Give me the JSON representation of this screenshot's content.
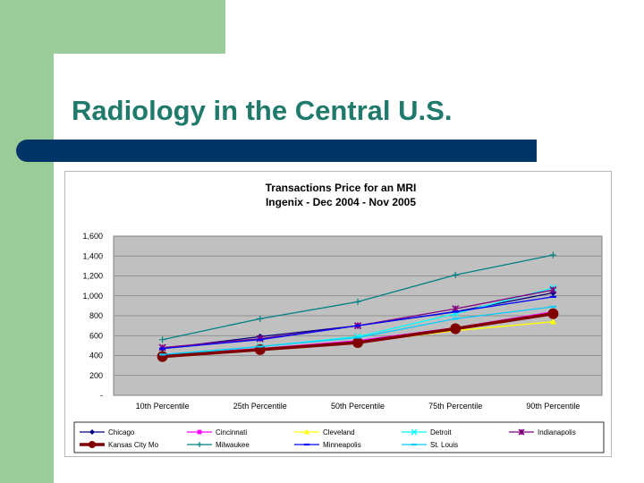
{
  "slide": {
    "title": "Radiology in the Central U.S."
  },
  "colors": {
    "green_accent": "#99cc99",
    "title_bar": "#003366",
    "title_text": "#1f7a6c",
    "plot_area": "#c0c0c0"
  },
  "chart_data": {
    "type": "line",
    "title_line1": "Transactions Price for an MRI",
    "title_line2": "Ingenix - Dec 2004 - Nov 2005",
    "categories": [
      "10th Percentile",
      "25th Percentile",
      "50th Percentile",
      "75th Percentile",
      "90th Percentile"
    ],
    "ylim": [
      0,
      1600
    ],
    "y_ticks": [
      {
        "value": 0,
        "label": "-"
      },
      {
        "value": 200,
        "label": "200"
      },
      {
        "value": 400,
        "label": "400"
      },
      {
        "value": 600,
        "label": "600"
      },
      {
        "value": 800,
        "label": "800"
      },
      {
        "value": 1000,
        "label": "1,000"
      },
      {
        "value": 1200,
        "label": "1,200"
      },
      {
        "value": 1400,
        "label": "1,400"
      },
      {
        "value": 1600,
        "label": "1,600"
      }
    ],
    "grid": "horizontal",
    "legend_position": "bottom",
    "series": [
      {
        "name": "Chicago",
        "color": "#000080",
        "marker": "diamond",
        "values": [
          470,
          590,
          700,
          840,
          1030
        ]
      },
      {
        "name": "Cincinnati",
        "color": "#ff00ff",
        "marker": "square",
        "values": [
          410,
          470,
          550,
          680,
          840
        ]
      },
      {
        "name": "Cleveland",
        "color": "#ffff00",
        "marker": "triangle",
        "values": [
          390,
          460,
          530,
          650,
          740
        ]
      },
      {
        "name": "Detroit",
        "color": "#00ffff",
        "marker": "x",
        "values": [
          400,
          490,
          590,
          820,
          1080
        ]
      },
      {
        "name": "Indianapolis",
        "color": "#800080",
        "marker": "star",
        "values": [
          480,
          570,
          700,
          870,
          1060
        ]
      },
      {
        "name": "Kansas City Mo",
        "color": "#800000",
        "marker": "circle",
        "values": [
          390,
          460,
          530,
          670,
          820
        ]
      },
      {
        "name": "Milwaukee",
        "color": "#008080",
        "marker": "plus",
        "values": [
          560,
          770,
          940,
          1210,
          1410
        ]
      },
      {
        "name": "Minneapolis",
        "color": "#0000ff",
        "marker": "dash",
        "values": [
          470,
          560,
          700,
          840,
          990
        ]
      },
      {
        "name": "St. Louis",
        "color": "#00ccff",
        "marker": "dash",
        "values": [
          410,
          490,
          580,
          770,
          890
        ]
      }
    ]
  }
}
